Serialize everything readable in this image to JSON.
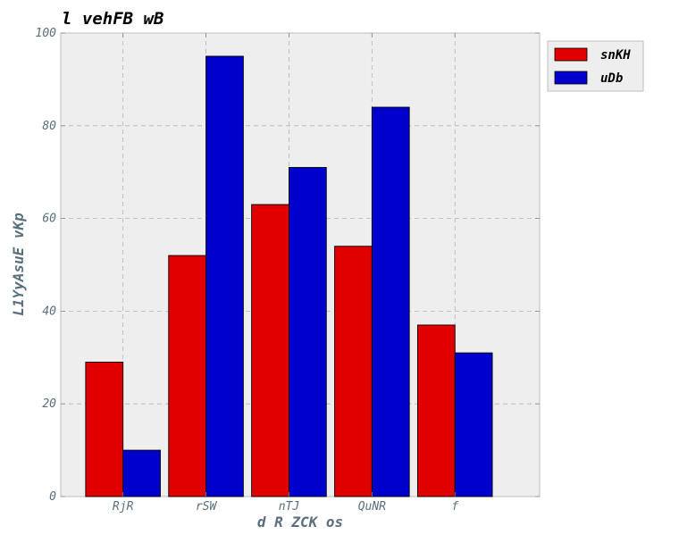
{
  "chart_data": {
    "type": "bar",
    "title": "l vehFB wB",
    "xlabel": "d R ZCK os",
    "ylabel": "L1YyAsuE vKp",
    "categories": [
      "RjR",
      "rSW",
      "nTJ",
      "QuNR",
      "f"
    ],
    "series": [
      {
        "name": "snKH",
        "values": [
          29,
          52,
          63,
          54,
          37
        ],
        "color": "#e00000"
      },
      {
        "name": "uDb",
        "values": [
          10,
          95,
          71,
          84,
          31
        ],
        "color": "#0000cc"
      }
    ],
    "ylim": [
      0,
      100
    ],
    "yticks": [
      0,
      20,
      40,
      60,
      80,
      100
    ],
    "grid": true,
    "legend_position": "top-right-outside",
    "plot_background": "#eeeeee"
  }
}
